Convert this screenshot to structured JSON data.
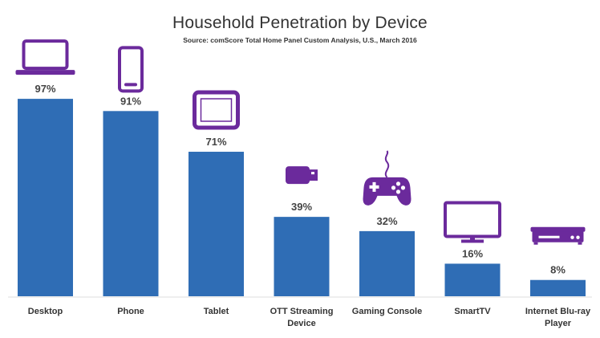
{
  "chart_data": {
    "type": "bar",
    "title": "Household Penetration by Device",
    "subtitle": "Source: comScore Total Home Panel Custom Analysis, U.S., March 2016",
    "categories": [
      "Desktop",
      "Phone",
      "Tablet",
      "OTT Streaming Device",
      "Gaming Console",
      "SmartTV",
      "Internet Blu-ray Player"
    ],
    "category_lines": [
      [
        "Desktop"
      ],
      [
        "Phone"
      ],
      [
        "Tablet"
      ],
      [
        "OTT Streaming",
        "Device"
      ],
      [
        "Gaming Console"
      ],
      [
        "SmartTV"
      ],
      [
        "Internet Blu-ray",
        "Player"
      ]
    ],
    "values": [
      97,
      91,
      71,
      39,
      32,
      16,
      8
    ],
    "value_labels": [
      "97%",
      "91%",
      "71%",
      "39%",
      "32%",
      "16%",
      "8%"
    ],
    "icons": [
      "laptop-icon",
      "phone-icon",
      "tablet-icon",
      "usb-stick-icon",
      "game-controller-icon",
      "tv-icon",
      "bluray-player-icon"
    ],
    "ylim": [
      0,
      100
    ],
    "xlabel": "",
    "ylabel": "",
    "grid": false,
    "colors": {
      "bar": "#2F6DB5",
      "icon": "#6B2A9C",
      "baseline": "#DDDDDD"
    }
  }
}
